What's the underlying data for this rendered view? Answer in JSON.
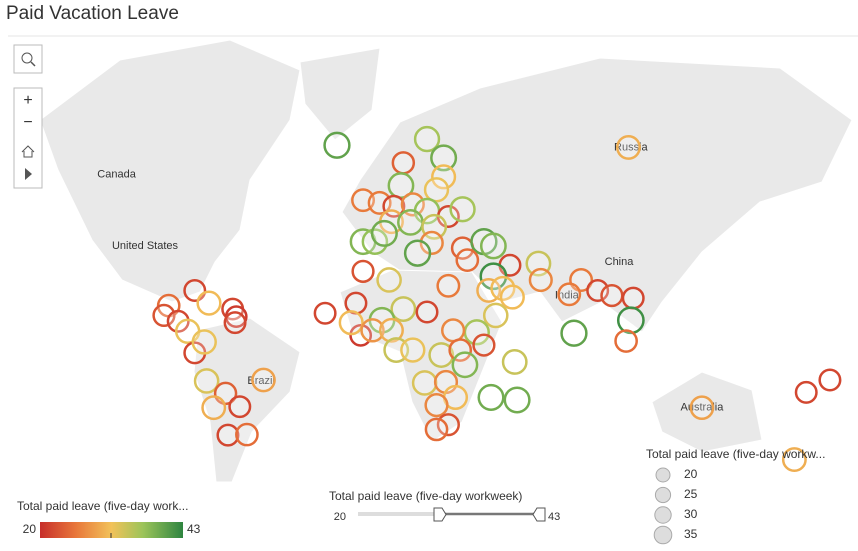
{
  "title": "Paid Vacation Leave",
  "map": {
    "labels": [
      {
        "text": "Canada",
        "lon": -112,
        "lat": 58.5
      },
      {
        "text": "United States",
        "lon": -100,
        "lat": 39
      },
      {
        "text": "China",
        "lon": 100,
        "lat": 33.5
      },
      {
        "text": "India",
        "lon": 78,
        "lat": 21
      },
      {
        "text": "Russia",
        "lon": 105,
        "lat": 64
      },
      {
        "text": "Brazil",
        "lon": -51,
        "lat": -14.5
      },
      {
        "text": "Australia",
        "lon": 135,
        "lat": -25
      }
    ],
    "markers": [
      {
        "lon": -19,
        "lat": 64.4,
        "value": 40
      },
      {
        "lon": 19,
        "lat": 65.5,
        "value": 36
      },
      {
        "lon": 26,
        "lat": 62,
        "value": 39
      },
      {
        "lon": 9,
        "lat": 61,
        "value": 24
      },
      {
        "lon": 26,
        "lat": 58,
        "value": 31
      },
      {
        "lon": 8,
        "lat": 56,
        "value": 38
      },
      {
        "lon": 23,
        "lat": 55,
        "value": 32
      },
      {
        "lon": -8,
        "lat": 52.4,
        "value": 26
      },
      {
        "lon": -1,
        "lat": 51.7,
        "value": 26
      },
      {
        "lon": 5,
        "lat": 50.8,
        "value": 22
      },
      {
        "lon": 13,
        "lat": 51.3,
        "value": 27
      },
      {
        "lon": 19,
        "lat": 49.5,
        "value": 37
      },
      {
        "lon": 28,
        "lat": 48,
        "value": 22
      },
      {
        "lon": 34,
        "lat": 50,
        "value": 36
      },
      {
        "lon": 4,
        "lat": 46.5,
        "value": 30
      },
      {
        "lon": 12,
        "lat": 46.3,
        "value": 38
      },
      {
        "lon": 22,
        "lat": 45,
        "value": 34
      },
      {
        "lon": -8,
        "lat": 40.4,
        "value": 38
      },
      {
        "lon": -3,
        "lat": 40.4,
        "value": 37
      },
      {
        "lon": 1,
        "lat": 43,
        "value": 39
      },
      {
        "lon": 21,
        "lat": 40,
        "value": 27
      },
      {
        "lon": 15,
        "lat": 36.6,
        "value": 40
      },
      {
        "lon": 34,
        "lat": 38.3,
        "value": 24
      },
      {
        "lon": 43,
        "lat": 40.4,
        "value": 40
      },
      {
        "lon": 47,
        "lat": 39,
        "value": 38
      },
      {
        "lon": 36,
        "lat": 34.2,
        "value": 25
      },
      {
        "lon": 54,
        "lat": 32.4,
        "value": 22
      },
      {
        "lon": 66,
        "lat": 33,
        "value": 34
      },
      {
        "lon": -8,
        "lat": 30.2,
        "value": 23
      },
      {
        "lon": 3,
        "lat": 27,
        "value": 33
      },
      {
        "lon": 28,
        "lat": 24.8,
        "value": 26
      },
      {
        "lon": 47,
        "lat": 28.4,
        "value": 42
      },
      {
        "lon": 67,
        "lat": 27,
        "value": 27
      },
      {
        "lon": 84,
        "lat": 27,
        "value": 26
      },
      {
        "lon": 45,
        "lat": 23,
        "value": 30
      },
      {
        "lon": 51,
        "lat": 23.8,
        "value": 31
      },
      {
        "lon": 55,
        "lat": 20.4,
        "value": 31
      },
      {
        "lon": 79,
        "lat": 21.5,
        "value": 26
      },
      {
        "lon": 91,
        "lat": 23,
        "value": 22
      },
      {
        "lon": 97,
        "lat": 21,
        "value": 23
      },
      {
        "lon": 106,
        "lat": 20,
        "value": 22
      },
      {
        "lon": -24,
        "lat": 13.9,
        "value": 22
      },
      {
        "lon": -11,
        "lat": 18,
        "value": 22
      },
      {
        "lon": 9,
        "lat": 15.6,
        "value": 34
      },
      {
        "lon": 19,
        "lat": 14.4,
        "value": 22
      },
      {
        "lon": 0,
        "lat": 11,
        "value": 38
      },
      {
        "lon": 48,
        "lat": 13,
        "value": 33
      },
      {
        "lon": 105,
        "lat": 11,
        "value": 42
      },
      {
        "lon": 81,
        "lat": 5.6,
        "value": 40
      },
      {
        "lon": 103,
        "lat": 2.3,
        "value": 25
      },
      {
        "lon": -9,
        "lat": 4.7,
        "value": 21
      },
      {
        "lon": -13,
        "lat": 10,
        "value": 31
      },
      {
        "lon": -4,
        "lat": 6.8,
        "value": 28
      },
      {
        "lon": 4,
        "lat": 6.8,
        "value": 30
      },
      {
        "lon": 40,
        "lat": 6,
        "value": 36
      },
      {
        "lon": 30,
        "lat": 6.8,
        "value": 27
      },
      {
        "lon": 6,
        "lat": -1.5,
        "value": 34
      },
      {
        "lon": 13,
        "lat": -1.5,
        "value": 32
      },
      {
        "lon": 25,
        "lat": -3.6,
        "value": 34
      },
      {
        "lon": 33,
        "lat": -1.5,
        "value": 25
      },
      {
        "lon": 43,
        "lat": 0.6,
        "value": 23
      },
      {
        "lon": 35,
        "lat": -7.7,
        "value": 38
      },
      {
        "lon": 56,
        "lat": -6.5,
        "value": 34
      },
      {
        "lon": 18,
        "lat": -15.2,
        "value": 33
      },
      {
        "lon": 27,
        "lat": -14.8,
        "value": 27
      },
      {
        "lon": 31,
        "lat": -21,
        "value": 31
      },
      {
        "lon": 46,
        "lat": -21,
        "value": 39
      },
      {
        "lon": 57,
        "lat": -22,
        "value": 39
      },
      {
        "lon": 23,
        "lat": -24,
        "value": 27
      },
      {
        "lon": 28,
        "lat": -31.3,
        "value": 23
      },
      {
        "lon": 23,
        "lat": -33,
        "value": 25
      },
      {
        "lon": -79,
        "lat": 23,
        "value": 22
      },
      {
        "lon": -90,
        "lat": 17,
        "value": 25
      },
      {
        "lon": -73,
        "lat": 18,
        "value": 31
      },
      {
        "lon": -92,
        "lat": 13,
        "value": 23
      },
      {
        "lon": -86,
        "lat": 10.6,
        "value": 22
      },
      {
        "lon": -63,
        "lat": 15.6,
        "value": 22
      },
      {
        "lon": -61.5,
        "lat": 12.5,
        "value": 21
      },
      {
        "lon": -62,
        "lat": 10,
        "value": 22
      },
      {
        "lon": -82,
        "lat": 6.4,
        "value": 32
      },
      {
        "lon": -79,
        "lat": -2.7,
        "value": 22
      },
      {
        "lon": -75,
        "lat": 1.9,
        "value": 32
      },
      {
        "lon": -74,
        "lat": -14.4,
        "value": 33
      },
      {
        "lon": -66,
        "lat": -19.4,
        "value": 24
      },
      {
        "lon": -71,
        "lat": -25,
        "value": 30
      },
      {
        "lon": -60,
        "lat": -24.6,
        "value": 22
      },
      {
        "lon": -50,
        "lat": -14,
        "value": 29
      },
      {
        "lon": -65,
        "lat": -35,
        "value": 22
      },
      {
        "lon": -57,
        "lat": -34.8,
        "value": 25
      },
      {
        "lon": 104,
        "lat": 64,
        "value": 30
      },
      {
        "lon": 135,
        "lat": -25,
        "value": 29
      },
      {
        "lon": 174,
        "lat": -43,
        "value": 30
      },
      {
        "lon": 179,
        "lat": -19,
        "value": 22
      },
      {
        "lon": -171,
        "lat": -14,
        "value": 22
      }
    ]
  },
  "color_legend": {
    "title": "Total paid leave  (five-day work...",
    "min": 20,
    "max": 43
  },
  "slider": {
    "title": "Total paid leave  (five-day workweek)",
    "min": 20,
    "max": 43
  },
  "size_legend": {
    "title": "Total paid leave  (five-day workw...",
    "values": [
      20,
      25,
      30,
      35
    ]
  }
}
